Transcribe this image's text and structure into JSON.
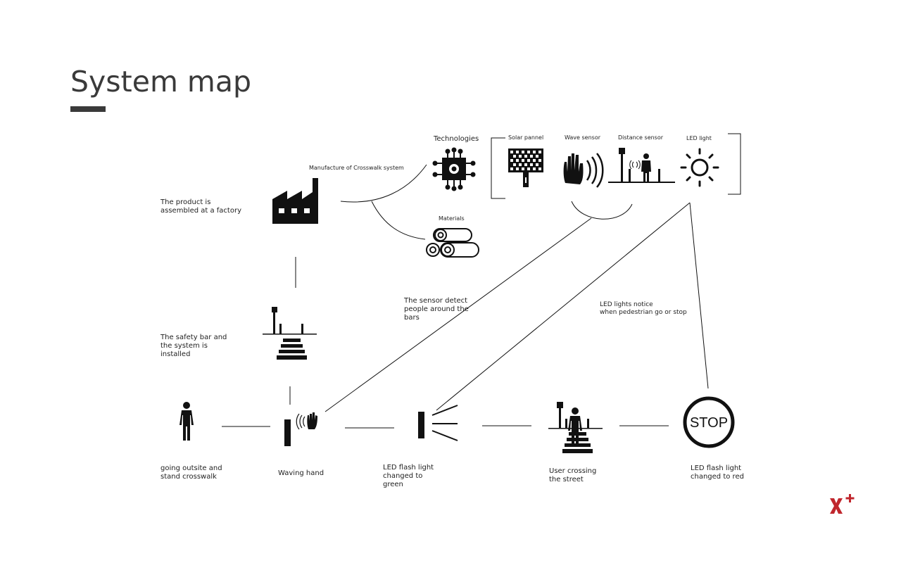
{
  "slide": {
    "title": "System map"
  },
  "top": {
    "manufacture_label": "Manufacture of Crosswalk system",
    "technologies_label": "Technologies",
    "materials_label": "Materials",
    "solar_label": "Solar pannel",
    "wave_label": "Wave sensor",
    "distance_label": "Distance sensor",
    "led_label": "LED light"
  },
  "left": {
    "factory_text": "The product is\nassembled at a factory",
    "install_text": "The safety bar  and\nthe system is\ninstalled"
  },
  "annotations": {
    "sensor_detect": "The sensor detect\npeople around the\nbars",
    "led_notice": "LED lights notice\nwhen pedestrian go or stop"
  },
  "steps": [
    {
      "label": "going outsite and\nstand crosswalk"
    },
    {
      "label": "Waving hand"
    },
    {
      "label": "LED flash light\nchanged to\ngreen"
    },
    {
      "label": "User crossing\nthe street"
    },
    {
      "label": "LED flash light\nchanged to red"
    }
  ],
  "stop_sign_text": "STOP",
  "logo": {
    "name": "x-plus-logo",
    "color": "#c0262d"
  }
}
